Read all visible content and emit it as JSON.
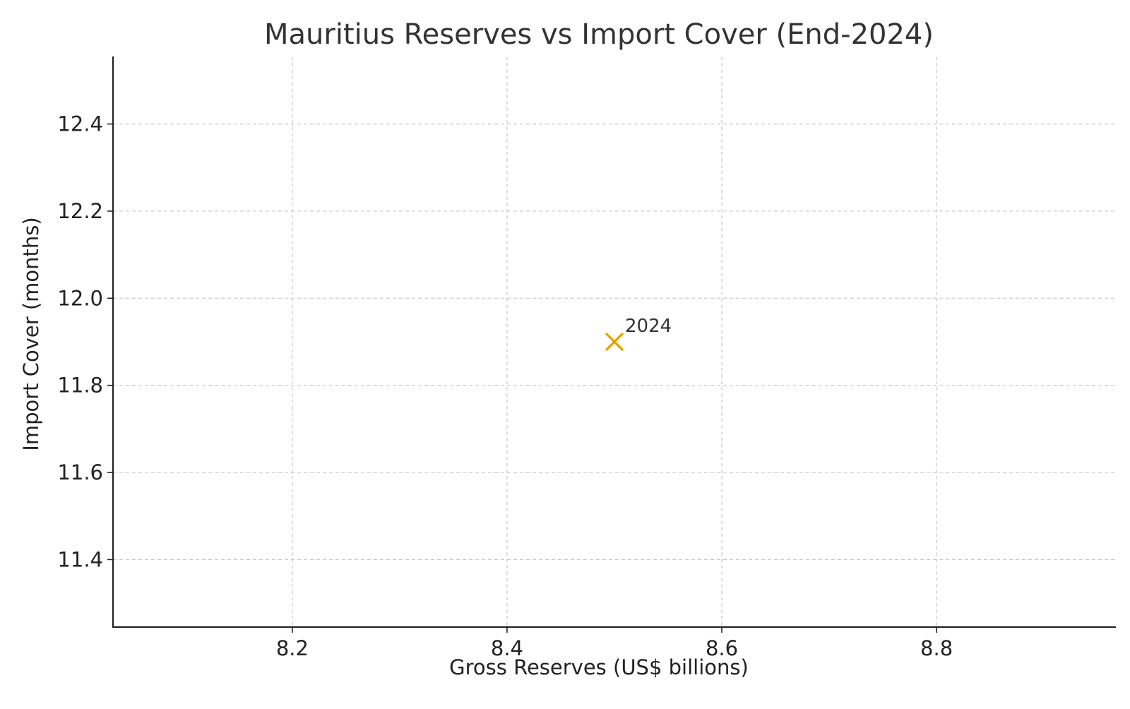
{
  "chart_data": {
    "type": "scatter",
    "title": "Mauritius Reserves vs Import Cover (End-2024)",
    "xlabel": "Gross Reserves (US$ billions)",
    "ylabel": "Import Cover (months)",
    "xlim": [
      8.033,
      8.967
    ],
    "ylim": [
      11.245,
      12.555
    ],
    "xticks": [
      8.2,
      8.4,
      8.6,
      8.8
    ],
    "xtick_labels": [
      "8.2",
      "8.4",
      "8.6",
      "8.8"
    ],
    "yticks": [
      11.4,
      11.6,
      11.8,
      12.0,
      12.2,
      12.4
    ],
    "ytick_labels": [
      "11.4",
      "11.6",
      "11.8",
      "12.0",
      "12.2",
      "12.4"
    ],
    "grid": true,
    "series": [
      {
        "marker": "x",
        "color": "#e69f00",
        "points": [
          {
            "x": 8.5,
            "y": 11.9,
            "label": "2024"
          }
        ]
      }
    ]
  }
}
